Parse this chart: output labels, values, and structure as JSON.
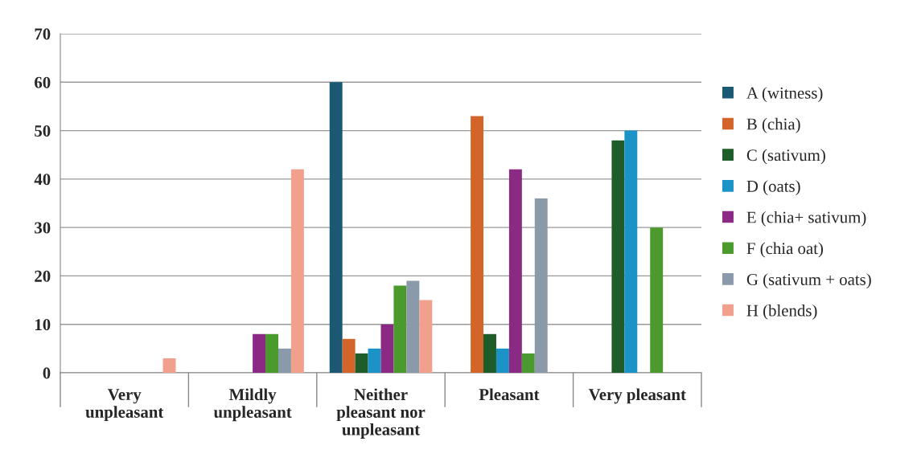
{
  "chart_data": {
    "type": "bar",
    "categories": [
      "Very\nunpleasant",
      "Mildly\nunpleasant",
      "Neither\npleasant nor\nunpleasant",
      "Pleasant",
      "Very pleasant"
    ],
    "series": [
      {
        "name": "A (witness)",
        "color": "#1a5873",
        "values": [
          0,
          0,
          60,
          0,
          0
        ]
      },
      {
        "name": "B (chia)",
        "color": "#d4652a",
        "values": [
          0,
          0,
          7,
          53,
          0
        ]
      },
      {
        "name": "C (sativum)",
        "color": "#1e5c2a",
        "values": [
          0,
          0,
          4,
          8,
          48
        ]
      },
      {
        "name": "D (oats)",
        "color": "#1b93c7",
        "values": [
          0,
          0,
          5,
          5,
          50
        ]
      },
      {
        "name": "E (chia+ sativum)",
        "color": "#8b2a85",
        "values": [
          0,
          8,
          10,
          42,
          0
        ]
      },
      {
        "name": "F (chia oat)",
        "color": "#4a9a2e",
        "values": [
          0,
          8,
          18,
          4,
          30
        ]
      },
      {
        "name": "G (sativum + oats)",
        "color": "#8a9aab",
        "values": [
          0,
          5,
          19,
          36,
          0
        ]
      },
      {
        "name": "H (blends)",
        "color": "#f0a08c",
        "values": [
          3,
          42,
          15,
          0,
          0
        ]
      }
    ],
    "ylim": [
      0,
      70
    ],
    "yticks": [
      0,
      10,
      20,
      30,
      40,
      50,
      60,
      70
    ],
    "grid": "y",
    "legend": "right"
  }
}
